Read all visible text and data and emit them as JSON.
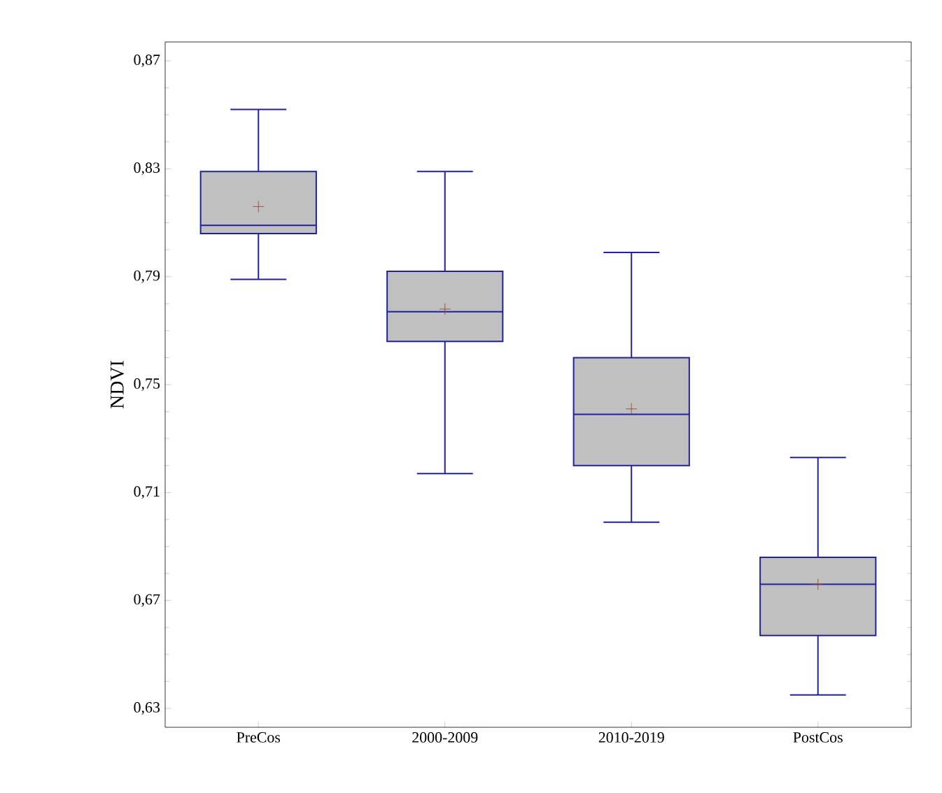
{
  "chart_data": {
    "type": "box",
    "ylabel": "NDVI",
    "categories": [
      "PreCos",
      "2000-2009",
      "2010-2019",
      "PostCos"
    ],
    "boxes": [
      {
        "low": 0.789,
        "q1": 0.806,
        "median": 0.809,
        "q3": 0.829,
        "high": 0.852,
        "mean": 0.816
      },
      {
        "low": 0.717,
        "q1": 0.766,
        "median": 0.777,
        "q3": 0.792,
        "high": 0.829,
        "mean": 0.778
      },
      {
        "low": 0.699,
        "q1": 0.72,
        "median": 0.739,
        "q3": 0.76,
        "high": 0.799,
        "mean": 0.741
      },
      {
        "low": 0.635,
        "q1": 0.657,
        "median": 0.676,
        "q3": 0.686,
        "high": 0.723,
        "mean": 0.676
      }
    ],
    "color": "#c0c0c0",
    "ylim": [
      0.623,
      0.877
    ],
    "yticks": [
      {
        "value": 0.63,
        "label": "0,63"
      },
      {
        "value": 0.67,
        "label": "0,67"
      },
      {
        "value": 0.71,
        "label": "0,71"
      },
      {
        "value": 0.75,
        "label": "0,75"
      },
      {
        "value": 0.79,
        "label": "0,79"
      },
      {
        "value": 0.83,
        "label": "0,83"
      },
      {
        "value": 0.87,
        "label": "0,87"
      }
    ]
  }
}
